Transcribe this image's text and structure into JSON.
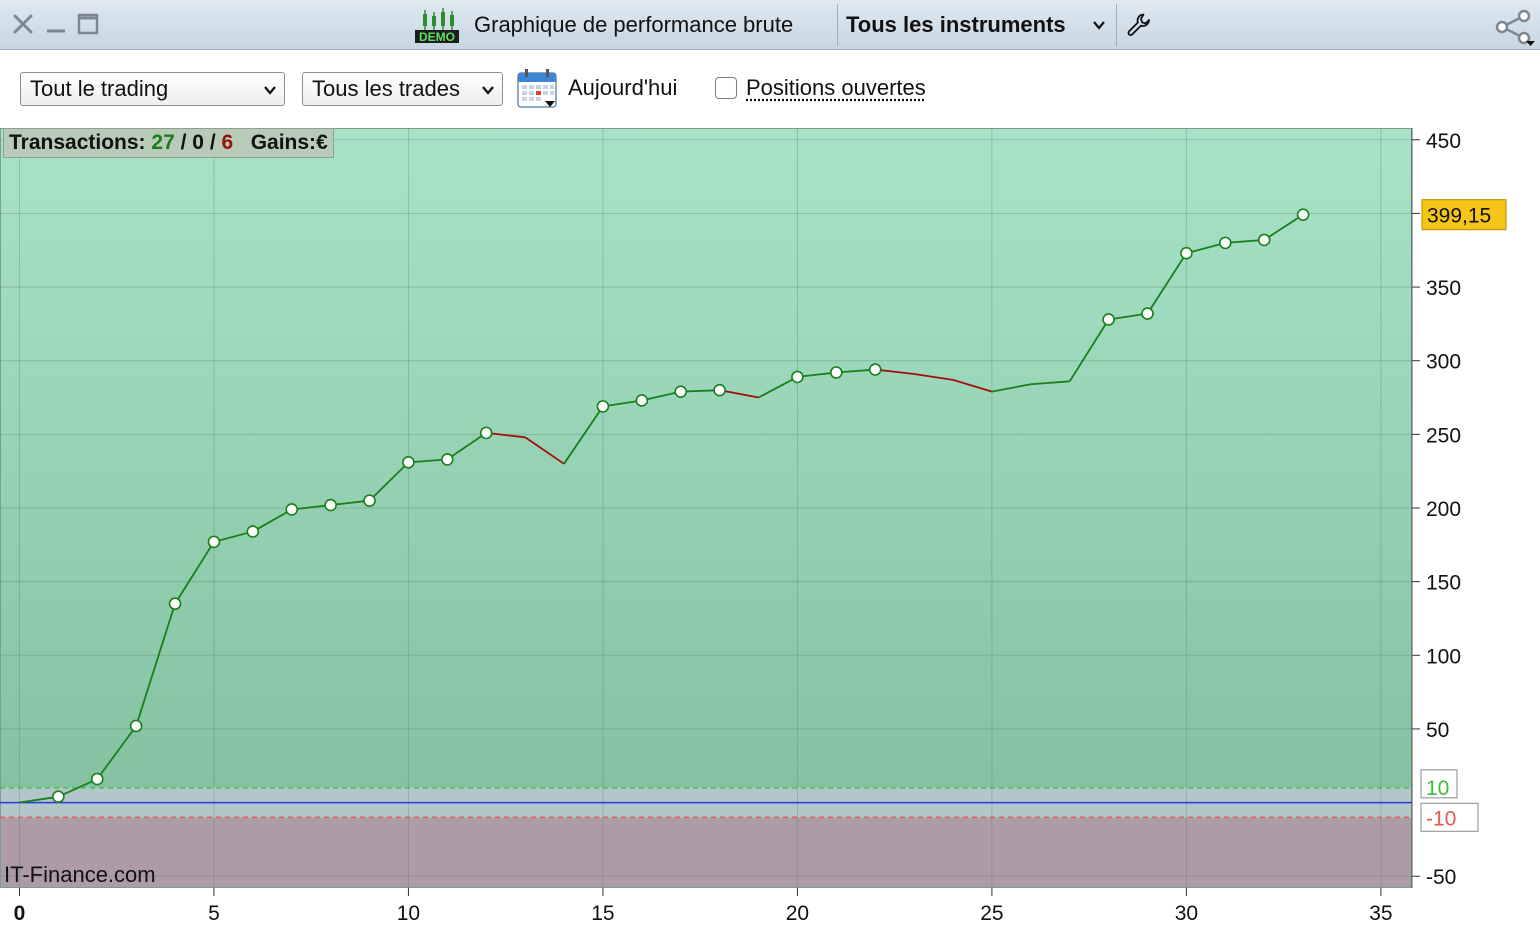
{
  "window": {
    "title": "Graphique de performance brute",
    "instrument_selector": "Tous les instruments",
    "demo_badge": "DEMO"
  },
  "toolbar": {
    "trading_filter": "Tout le trading",
    "trades_filter": "Tous les trades",
    "date_label": "Aujourd'hui",
    "open_positions_label": "Positions ouvertes",
    "open_positions_checked": false
  },
  "info": {
    "transactions_label": "Transactions:",
    "wins": "27",
    "neutral": "0",
    "losses": "6",
    "separator": "/",
    "gains_label": "Gains:",
    "currency": "€"
  },
  "watermark": "IT-Finance.com",
  "colors": {
    "profit_zone_top": "#a8e3c8",
    "profit_zone_bottom": "#84c2a2",
    "loss_zone": "#ad9ba8",
    "neutral_zone": "#b3c6ca",
    "gain_line": "#1a7f1a",
    "loss_line": "#a00f0f",
    "zero_line": "#2a38d8",
    "upper_threshold": "#3bbf3b",
    "lower_threshold": "#e05a5a",
    "last_value_badge": "#f5c518"
  },
  "chart_data": {
    "type": "line",
    "xlim": [
      -0.5,
      35.8
    ],
    "ylim": [
      -58,
      458
    ],
    "x_ticks": [
      "0",
      "5",
      "10",
      "15",
      "20",
      "25",
      "30",
      "35"
    ],
    "y_ticks": [
      "450",
      "350",
      "300",
      "250",
      "200",
      "150",
      "100",
      "50",
      "-50"
    ],
    "thresholds": {
      "upper": 10,
      "lower": -10,
      "upper_label": "10",
      "lower_label": "-10"
    },
    "last_value_label": "399,15",
    "grid": true,
    "points": [
      {
        "x": 0,
        "y": 0
      },
      {
        "x": 1,
        "y": 4
      },
      {
        "x": 2,
        "y": 16
      },
      {
        "x": 3,
        "y": 52
      },
      {
        "x": 4,
        "y": 135
      },
      {
        "x": 5,
        "y": 177
      },
      {
        "x": 6,
        "y": 184
      },
      {
        "x": 7,
        "y": 199
      },
      {
        "x": 8,
        "y": 202
      },
      {
        "x": 9,
        "y": 205
      },
      {
        "x": 10,
        "y": 231
      },
      {
        "x": 11,
        "y": 233
      },
      {
        "x": 12,
        "y": 251
      },
      {
        "x": 13,
        "y": 248
      },
      {
        "x": 14,
        "y": 230
      },
      {
        "x": 15,
        "y": 269
      },
      {
        "x": 16,
        "y": 273
      },
      {
        "x": 17,
        "y": 279
      },
      {
        "x": 18,
        "y": 280
      },
      {
        "x": 19,
        "y": 275
      },
      {
        "x": 20,
        "y": 289
      },
      {
        "x": 21,
        "y": 292
      },
      {
        "x": 22,
        "y": 294
      },
      {
        "x": 23,
        "y": 291
      },
      {
        "x": 24,
        "y": 287
      },
      {
        "x": 25,
        "y": 279
      },
      {
        "x": 26,
        "y": 284
      },
      {
        "x": 27,
        "y": 286
      },
      {
        "x": 28,
        "y": 328
      },
      {
        "x": 29,
        "y": 332
      },
      {
        "x": 30,
        "y": 373
      },
      {
        "x": 31,
        "y": 380
      },
      {
        "x": 32,
        "y": 382
      },
      {
        "x": 33,
        "y": 399.15
      }
    ],
    "marked_points_x": [
      1,
      2,
      3,
      4,
      5,
      6,
      7,
      8,
      9,
      10,
      11,
      12,
      15,
      16,
      17,
      18,
      20,
      21,
      22,
      28,
      29,
      30,
      31,
      32,
      33
    ]
  }
}
